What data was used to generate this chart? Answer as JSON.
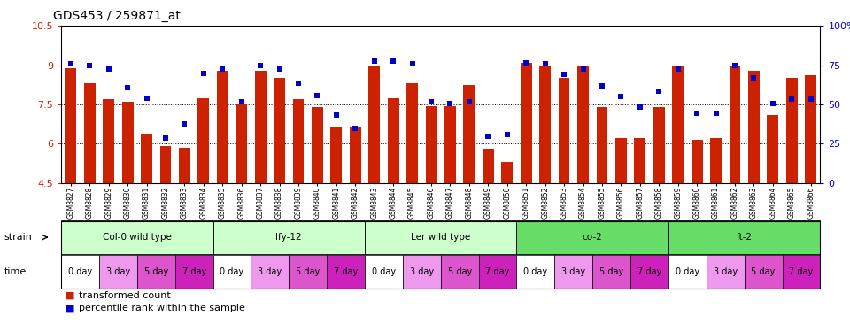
{
  "title": "GDS453 / 259871_at",
  "xlabels": [
    "GSM8827",
    "GSM8828",
    "GSM8829",
    "GSM8830",
    "GSM8831",
    "GSM8832",
    "GSM8833",
    "GSM8834",
    "GSM8835",
    "GSM8836",
    "GSM8837",
    "GSM8838",
    "GSM8839",
    "GSM8840",
    "GSM8841",
    "GSM8842",
    "GSM8843",
    "GSM8844",
    "GSM8845",
    "GSM8846",
    "GSM8847",
    "GSM8848",
    "GSM8849",
    "GSM8850",
    "GSM8851",
    "GSM8852",
    "GSM8853",
    "GSM8854",
    "GSM8855",
    "GSM8856",
    "GSM8857",
    "GSM8858",
    "GSM8859",
    "GSM8860",
    "GSM8861",
    "GSM8862",
    "GSM8863",
    "GSM8864",
    "GSM8865",
    "GSM8866"
  ],
  "bar_values": [
    8.9,
    8.3,
    7.7,
    7.6,
    6.4,
    5.9,
    5.85,
    7.75,
    8.8,
    7.55,
    8.8,
    8.5,
    7.7,
    7.4,
    6.65,
    6.65,
    9.0,
    7.75,
    8.3,
    7.45,
    7.45,
    8.25,
    5.8,
    5.3,
    9.1,
    9.0,
    8.5,
    9.0,
    7.4,
    6.2,
    6.2,
    7.4,
    9.0,
    6.15,
    6.2,
    9.0,
    8.8,
    7.1,
    8.5,
    8.6
  ],
  "scatter_values": [
    9.05,
    9.0,
    8.85,
    8.15,
    7.75,
    6.2,
    6.75,
    8.7,
    8.85,
    7.6,
    9.0,
    8.85,
    8.3,
    7.85,
    7.1,
    6.6,
    9.15,
    9.15,
    9.05,
    7.6,
    7.55,
    7.6,
    6.3,
    6.35,
    9.1,
    9.05,
    8.65,
    8.85,
    8.2,
    7.8,
    7.4,
    8.0,
    8.85,
    7.15,
    7.15,
    9.0,
    8.5,
    7.55,
    7.7,
    7.7
  ],
  "bar_color": "#cc2200",
  "scatter_color": "#0000cc",
  "ylim_left": [
    4.5,
    10.5
  ],
  "ylim_right": [
    0,
    100
  ],
  "yticks_left": [
    4.5,
    6.0,
    7.5,
    9.0,
    10.5
  ],
  "ytick_labels_left": [
    "4.5",
    "6",
    "7.5",
    "9",
    "10.5"
  ],
  "yticks_right": [
    0,
    25,
    50,
    75,
    100
  ],
  "ytick_labels_right": [
    "0",
    "25",
    "50",
    "75",
    "100%"
  ],
  "hlines": [
    6.0,
    7.5,
    9.0
  ],
  "strains": [
    {
      "label": "Col-0 wild type",
      "start": 0,
      "end": 8,
      "color": "#ccffcc"
    },
    {
      "label": "lfy-12",
      "start": 8,
      "end": 16,
      "color": "#ccffcc"
    },
    {
      "label": "Ler wild type",
      "start": 16,
      "end": 24,
      "color": "#ccffcc"
    },
    {
      "label": "co-2",
      "start": 24,
      "end": 32,
      "color": "#66dd66"
    },
    {
      "label": "ft-2",
      "start": 32,
      "end": 40,
      "color": "#66dd66"
    }
  ],
  "time_labels": [
    "0 day",
    "3 day",
    "5 day",
    "7 day"
  ],
  "time_colors": [
    "#ffffff",
    "#ee99ee",
    "#dd55cc",
    "#cc22bb"
  ],
  "legend_bar_label": "transformed count",
  "legend_scatter_label": "percentile rank within the sample",
  "bar_width": 0.6,
  "base_value": 4.5
}
